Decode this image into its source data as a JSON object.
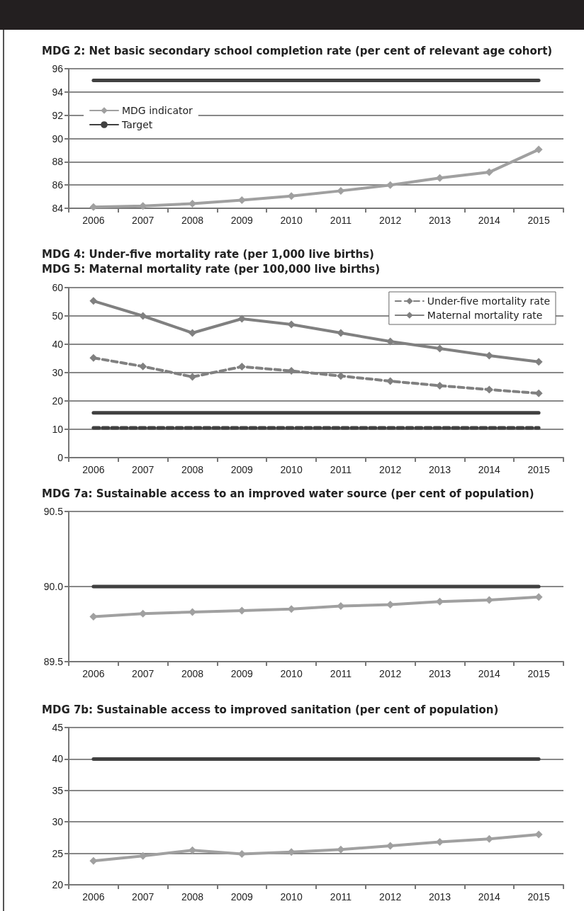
{
  "chart_data": [
    {
      "type": "line",
      "title": "MDG 2: Net basic secondary school completion rate (per cent of relevant age cohort)",
      "categories": [
        "2006",
        "2007",
        "2008",
        "2009",
        "2010",
        "2011",
        "2012",
        "2013",
        "2014",
        "2015"
      ],
      "ylim": [
        84,
        96
      ],
      "yticks": [
        84,
        86,
        88,
        90,
        92,
        94,
        96
      ],
      "grid": "y",
      "legend": "top left",
      "series": [
        {
          "name": "MDG indicator",
          "color": "#a0a0a0",
          "marker": "diamond",
          "line_style": "solid",
          "values": [
            84.1,
            84.2,
            84.4,
            84.7,
            85.05,
            85.5,
            86.0,
            86.6,
            87.1,
            89.05
          ]
        },
        {
          "name": "Target",
          "color": "#404040",
          "marker": "none",
          "line_style": "solid",
          "values": [
            95,
            95,
            95,
            95,
            95,
            95,
            95,
            95,
            95,
            95
          ]
        }
      ]
    },
    {
      "type": "line",
      "title": "MDG 4: Under-five mortality rate (per 1,000 live births)",
      "subtitle": "MDG 5: Maternal mortality rate (per 100,000 live births)",
      "categories": [
        "2006",
        "2007",
        "2008",
        "2009",
        "2010",
        "2011",
        "2012",
        "2013",
        "2014",
        "2015"
      ],
      "ylim": [
        0,
        60
      ],
      "yticks": [
        0,
        10,
        20,
        30,
        40,
        50,
        60
      ],
      "grid": "y",
      "legend": "top right",
      "series": [
        {
          "name": "Under-five mortality rate",
          "color": "#808080",
          "marker": "diamond",
          "line_style": "dashed",
          "values": [
            35.2,
            32.2,
            28.5,
            32.1,
            30.6,
            28.8,
            27.0,
            25.4,
            24.0,
            22.7
          ]
        },
        {
          "name": "Maternal mortality rate",
          "color": "#808080",
          "marker": "diamond",
          "line_style": "solid",
          "values": [
            55.3,
            50.0,
            44.0,
            49.0,
            47.0,
            44.0,
            41.0,
            38.5,
            36.0,
            33.8
          ]
        },
        {
          "color": "#404040",
          "marker": "none",
          "line_style": "solid",
          "values": [
            15.8,
            15.8,
            15.8,
            15.8,
            15.8,
            15.8,
            15.8,
            15.8,
            15.8,
            15.8
          ]
        },
        {
          "color": "#404040",
          "marker": "none",
          "line_style": "dashed",
          "values": [
            10.5,
            10.5,
            10.5,
            10.5,
            10.5,
            10.5,
            10.5,
            10.5,
            10.5,
            10.5
          ]
        }
      ]
    },
    {
      "type": "line",
      "title": "MDG 7a: Sustainable access to an improved water source (per cent of population)",
      "categories": [
        "2006",
        "2007",
        "2008",
        "2009",
        "2010",
        "2011",
        "2012",
        "2013",
        "2014",
        "2015"
      ],
      "ylim": [
        89.5,
        90.5
      ],
      "yticks": [
        {
          "value": 89.5,
          "label": "89.5"
        },
        {
          "value": 90,
          "label": "90.0"
        },
        {
          "value": 90.5,
          "label": "90.5"
        }
      ],
      "grid": "y",
      "series": [
        {
          "color": "#a0a0a0",
          "marker": "diamond",
          "line_style": "solid",
          "values": [
            89.8,
            89.82,
            89.83,
            89.84,
            89.85,
            89.87,
            89.88,
            89.9,
            89.91,
            89.93
          ]
        },
        {
          "color": "#404040",
          "marker": "none",
          "line_style": "solid",
          "values": [
            90,
            90,
            90,
            90,
            90,
            90,
            90,
            90,
            90,
            90
          ]
        }
      ]
    },
    {
      "type": "line",
      "title": "MDG 7b: Sustainable access to improved sanitation (per cent of population)",
      "categories": [
        "2006",
        "2007",
        "2008",
        "2009",
        "2010",
        "2011",
        "2012",
        "2013",
        "2014",
        "2015"
      ],
      "ylim": [
        20,
        45
      ],
      "yticks": [
        20,
        25,
        30,
        35,
        40,
        45
      ],
      "grid": "y",
      "series": [
        {
          "color": "#a0a0a0",
          "marker": "diamond",
          "line_style": "solid",
          "values": [
            23.8,
            24.6,
            25.5,
            24.9,
            25.2,
            25.6,
            26.2,
            26.8,
            27.3,
            28.0
          ]
        },
        {
          "color": "#404040",
          "marker": "none",
          "line_style": "solid",
          "values": [
            40,
            40,
            40,
            40,
            40,
            40,
            40,
            40,
            40,
            40
          ]
        }
      ]
    }
  ]
}
